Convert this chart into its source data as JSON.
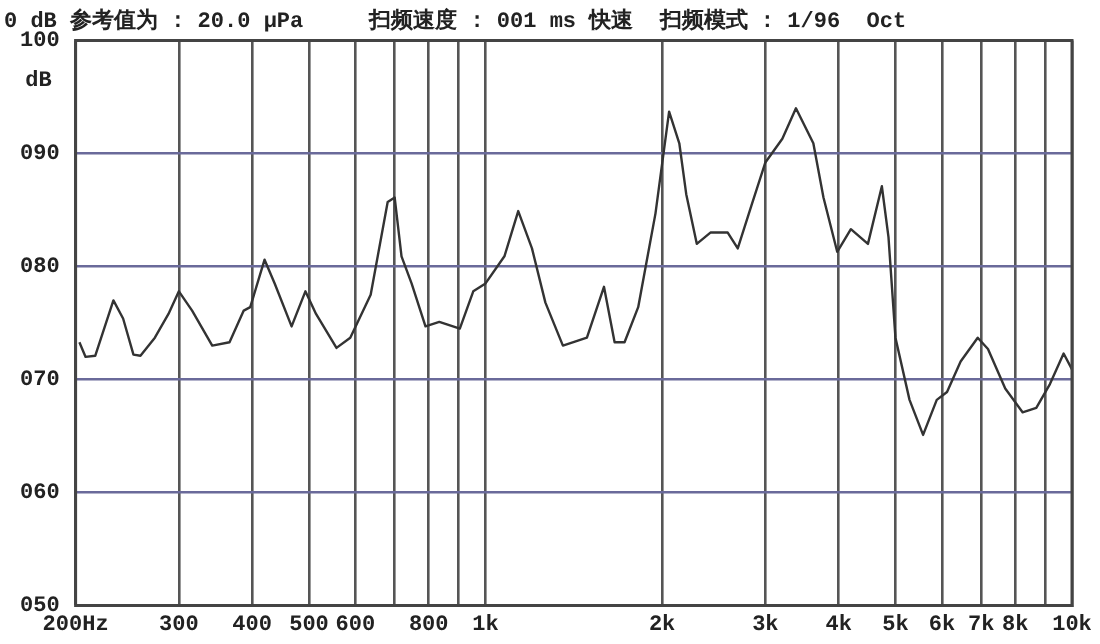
{
  "chart_data": {
    "type": "line",
    "title": "0 dB 参考值为 : 20.0 μPa     扫频速度 : 001 ms 快速  扫频模式 : 1/96  Oct",
    "ylabel": "dB",
    "log": "x",
    "grid": true,
    "legend": false,
    "marker": "none",
    "line_style": "solid",
    "xlim": [
      200,
      10000
    ],
    "ylim": [
      50,
      100
    ],
    "xticks": [
      {
        "value": 200,
        "label": "200Hz"
      },
      300,
      400,
      500,
      600,
      {
        "value": 700,
        "label": null
      },
      800,
      {
        "value": 900,
        "label": null
      },
      {
        "value": 1000,
        "label": "1k"
      },
      {
        "value": 2000,
        "label": "2k"
      },
      {
        "value": 3000,
        "label": "3k"
      },
      {
        "value": 4000,
        "label": "4k"
      },
      {
        "value": 5000,
        "label": "5k"
      },
      {
        "value": 6000,
        "label": "6k"
      },
      {
        "value": 7000,
        "label": "7k"
      },
      {
        "value": 8000,
        "label": "8k"
      },
      {
        "value": 9000,
        "label": null
      },
      {
        "value": 10000,
        "label": "10k"
      }
    ],
    "yticks": [
      {
        "value": 50,
        "label": "050"
      },
      {
        "value": 60,
        "label": "060"
      },
      {
        "value": 70,
        "label": "070"
      },
      {
        "value": 80,
        "label": "080"
      },
      {
        "value": 90,
        "label": "090"
      },
      {
        "value": 100,
        "label": "100"
      }
    ],
    "series": [
      {
        "color": "#333333",
        "x": [
          203,
          208,
          216,
          232,
          241,
          251,
          258,
          273,
          288,
          300,
          316,
          342,
          366,
          387,
          397,
          420,
          437,
          467,
          493,
          514,
          557,
          588,
          637,
          681,
          700,
          719,
          748,
          790,
          834,
          904,
          953,
          1000,
          1077,
          1137,
          1200,
          1265,
          1355,
          1489,
          1592,
          1660,
          1726,
          1821,
          1949,
          2056,
          2140,
          2199,
          2292,
          2418,
          2588,
          2692,
          2841,
          3000,
          3207,
          3383,
          3622,
          3769,
          3978,
          4197,
          4488,
          4740,
          4865,
          5000,
          5284,
          5573,
          5880,
          6122,
          6458,
          6906,
          7190,
          7694,
          8236,
          8692,
          9170,
          9676,
          10000
        ],
        "values": [
          73.3,
          72,
          72.1,
          77,
          75.4,
          72.2,
          72.1,
          73.7,
          75.8,
          77.8,
          76.1,
          73,
          73.3,
          76.1,
          76.4,
          80.6,
          78.5,
          74.7,
          77.8,
          75.8,
          72.8,
          73.7,
          77.5,
          85.7,
          86.1,
          80.9,
          78.5,
          74.7,
          75.1,
          74.5,
          77.8,
          78.5,
          80.9,
          84.9,
          81.6,
          76.8,
          73,
          73.7,
          78.2,
          73.3,
          73.3,
          76.4,
          84.7,
          93.7,
          90.9,
          86.4,
          82,
          83,
          83,
          81.6,
          85.4,
          89.2,
          91.3,
          94,
          90.9,
          86.1,
          81.3,
          83.3,
          82,
          87.1,
          82.6,
          73.7,
          68.2,
          65.1,
          68.2,
          68.9,
          71.6,
          73.7,
          72.7,
          69.2,
          67.1,
          67.5,
          69.6,
          72.3,
          70.9
        ]
      }
    ]
  }
}
